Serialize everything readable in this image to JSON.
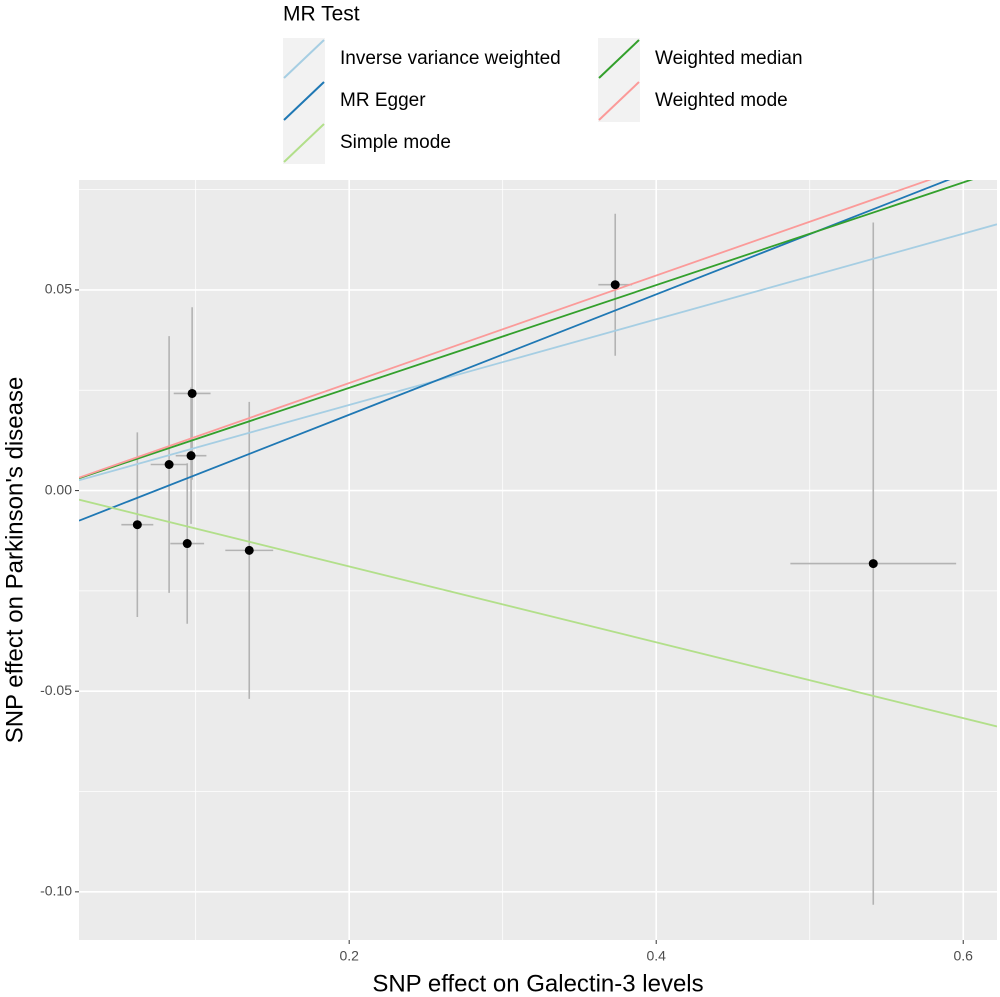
{
  "chart_data": {
    "type": "scatter",
    "legend_title": "MR Test",
    "xlabel": "SNP effect on Galectin-3 levels",
    "ylabel": "SNP effect on Parkinson's disease",
    "xlim": [
      0.024,
      0.622
    ],
    "ylim": [
      -0.112,
      0.0774
    ],
    "xticks": [
      0.2,
      0.4,
      0.6
    ],
    "yticks": [
      {
        "value": -0.1,
        "label": "-0.10"
      },
      -0.05,
      {
        "value": 0,
        "label": "0.00"
      },
      0.05
    ],
    "grid": true,
    "points": {
      "color": "#000000",
      "error_color": "#b3b3b3",
      "x": [
        0.062,
        0.0827,
        0.0977,
        0.097,
        0.0945,
        0.1349,
        0.3733,
        0.5414
      ],
      "y": [
        -0.0085,
        0.0065,
        0.0242,
        0.0087,
        -0.0132,
        -0.0149,
        0.0513,
        -0.0182
      ],
      "x_error": [
        0.0104,
        0.012,
        0.012,
        0.01,
        0.011,
        0.0156,
        0.011,
        0.054
      ],
      "y_error": [
        0.023,
        0.032,
        0.0215,
        0.017,
        0.02,
        0.037,
        0.0177,
        0.085
      ]
    },
    "lines": [
      {
        "name": "Inverse variance weighted",
        "color": "#a6cee3",
        "intercept": 0,
        "slope": 0.1067
      },
      {
        "name": "MR Egger",
        "color": "#1f78b4",
        "intercept": -0.0111,
        "slope": 0.15
      },
      {
        "name": "Simple mode",
        "color": "#b2df8a",
        "intercept": 0,
        "slope": -0.0945
      },
      {
        "name": "Weighted median",
        "color": "#33a02c",
        "intercept": 0,
        "slope": 0.128
      },
      {
        "name": "Weighted mode",
        "color": "#fb9a99",
        "intercept": 0,
        "slope": 0.134
      }
    ]
  }
}
